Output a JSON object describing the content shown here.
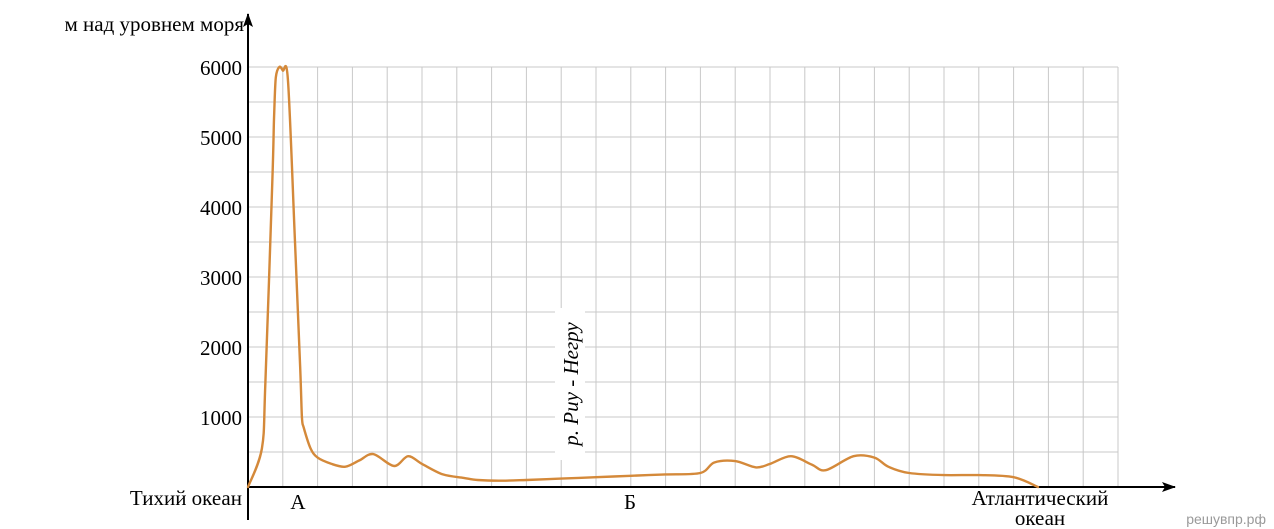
{
  "chart_data": {
    "type": "line",
    "ylabel": "м над уровнем моря",
    "yticks": [
      1000,
      2000,
      3000,
      4000,
      5000,
      6000
    ],
    "ylim": [
      0,
      6000
    ],
    "grid": true,
    "grid_columns": 25,
    "grid_rows": 12,
    "point_labels": {
      "left": "Тихий океан",
      "a": "А",
      "b": "Б",
      "right_line1": "Атлантический",
      "right_line2": "океан"
    },
    "annotation": "р. Риу - Негру",
    "line_color": "#d4893a",
    "series": [
      {
        "x": [
          0,
          0.4,
          0.5,
          0.7,
          0.75,
          0.8,
          0.9,
          1.0,
          1.15,
          1.35,
          1.5,
          1.55,
          1.6,
          1.8,
          2.0,
          2.4,
          2.8,
          3.2,
          3.6,
          4.2,
          4.6,
          5.0,
          5.6,
          6.2,
          6.6,
          7.2,
          8.0,
          9.0,
          10.0,
          11.0,
          12.0,
          13.0,
          13.4,
          14.0,
          14.6,
          15.0,
          15.6,
          16.2,
          16.6,
          17.4,
          18.0,
          18.4,
          19.0,
          20.0,
          21.0,
          22.0,
          22.7
        ],
        "y": [
          0,
          550,
          1500,
          4400,
          5300,
          5850,
          6000,
          5950,
          5800,
          3500,
          1700,
          1000,
          850,
          550,
          420,
          330,
          290,
          380,
          470,
          300,
          440,
          330,
          180,
          130,
          100,
          90,
          100,
          120,
          140,
          160,
          180,
          200,
          350,
          370,
          280,
          330,
          440,
          320,
          240,
          440,
          420,
          290,
          200,
          170,
          170,
          140,
          0
        ]
      }
    ]
  },
  "watermark": "решувпр.рф"
}
